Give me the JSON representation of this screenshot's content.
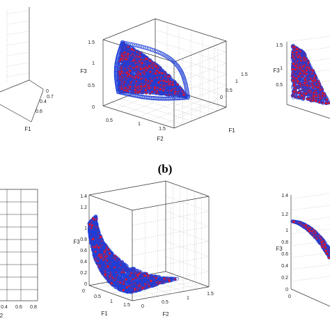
{
  "figure_caption": "(b)",
  "colors": {
    "marker_edge": "#1f3fd6",
    "marker_fill": "#e0142a",
    "axis": "#333333",
    "grid": "#c8c8c8"
  },
  "chart_data": [
    {
      "id": "top-left",
      "type": "scatter",
      "surface": "partial-view",
      "axes": {
        "x": {
          "label": "F1",
          "ticks": [
            "0",
            "0.4",
            "0.6"
          ]
        },
        "y": {
          "label": "",
          "ticks": []
        },
        "z": {
          "label": "",
          "ticks": []
        }
      },
      "extra_ticks": [
        "0.7"
      ],
      "grid": true
    },
    {
      "id": "top-middle",
      "type": "scatter",
      "surface": "spherical-front",
      "axes": {
        "x": {
          "label": "F2",
          "ticks": [
            "0.5",
            "1",
            "1.5"
          ]
        },
        "y": {
          "label": "F1",
          "ticks": [
            "0",
            "0.5",
            "1",
            "1.5"
          ]
        },
        "z": {
          "label": "F3",
          "ticks": [
            "0",
            "0.5",
            "1",
            "1.5"
          ]
        }
      },
      "grid": true
    },
    {
      "id": "top-right",
      "type": "scatter",
      "surface": "spherical-front-partial",
      "axes": {
        "x": {
          "label": "",
          "ticks": []
        },
        "y": {
          "label": "",
          "ticks": []
        },
        "z": {
          "label": "F3",
          "ticks": [
            "0.5",
            "1",
            "1.5"
          ]
        }
      },
      "grid": true
    },
    {
      "id": "bottom-left",
      "type": "scatter",
      "surface": "partial-view",
      "axes": {
        "x": {
          "label": "2",
          "ticks": [
            "0.4",
            "0.6",
            "0.8"
          ]
        },
        "y": {
          "label": "",
          "ticks": []
        },
        "z": {
          "label": "",
          "ticks": []
        }
      },
      "grid": true
    },
    {
      "id": "bottom-middle",
      "type": "scatter",
      "surface": "concave-front",
      "axes": {
        "x": {
          "label": "F1",
          "ticks": [
            "0",
            "0.5",
            "1",
            "1.5"
          ]
        },
        "y": {
          "label": "F2",
          "ticks": [
            "0",
            "0.5",
            "1",
            "1.5"
          ]
        },
        "z": {
          "label": "F3",
          "ticks": [
            "0",
            "0.2",
            "0.4",
            "0.6",
            "0.8",
            "1",
            "1.2",
            "1.4"
          ]
        }
      },
      "grid": true
    },
    {
      "id": "bottom-right",
      "type": "scatter",
      "surface": "concave-front-partial",
      "axes": {
        "x": {
          "label": "",
          "ticks": [
            "0"
          ]
        },
        "y": {
          "label": "",
          "ticks": []
        },
        "z": {
          "label": "F3",
          "ticks": [
            "0",
            "0.2",
            "0.4",
            "0.6",
            "0.8",
            "1",
            "1.2",
            "1.4"
          ]
        }
      },
      "grid": true
    }
  ]
}
